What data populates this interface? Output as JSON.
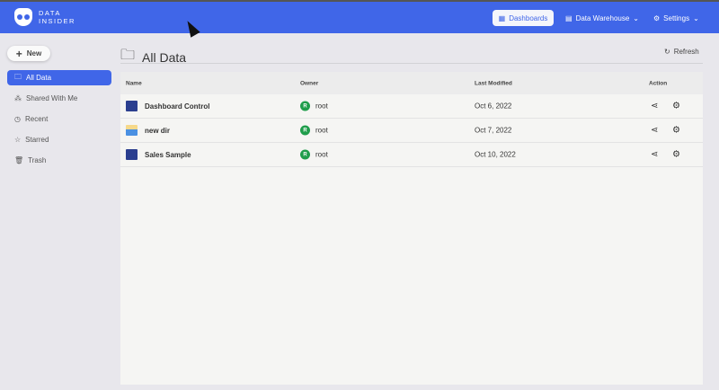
{
  "app": {
    "logo_line1": "DATA",
    "logo_line2": "INSIDER"
  },
  "nav": {
    "dashboards": "Dashboards",
    "warehouse": "Data Warehouse",
    "settings": "Settings"
  },
  "sidebar": {
    "new": "New",
    "items": [
      {
        "label": "All Data",
        "icon": "folder-icon"
      },
      {
        "label": "Shared With Me",
        "icon": "share-icon"
      },
      {
        "label": "Recent",
        "icon": "clock-icon"
      },
      {
        "label": "Starred",
        "icon": "star-icon"
      },
      {
        "label": "Trash",
        "icon": "trash-icon"
      }
    ]
  },
  "main": {
    "title": "All Data",
    "refresh": "Refresh",
    "columns": [
      "Name",
      "Owner",
      "Last Modified",
      "Action"
    ],
    "rows": [
      {
        "name": "Dashboard Control",
        "type": "dashboard",
        "owner_initial": "R",
        "owner": "root",
        "modified": "Oct 6, 2022"
      },
      {
        "name": "new dir",
        "type": "folder",
        "owner_initial": "R",
        "owner": "root",
        "modified": "Oct 7, 2022"
      },
      {
        "name": "Sales Sample",
        "type": "dashboard",
        "owner_initial": "R",
        "owner": "root",
        "modified": "Oct 10, 2022"
      }
    ]
  },
  "colors": {
    "accent": "#4066e8",
    "owner_avatar": "#1f9d4b"
  }
}
